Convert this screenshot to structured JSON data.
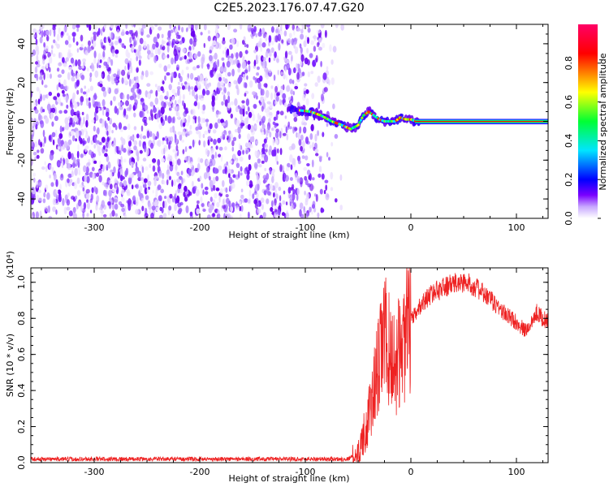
{
  "chart_data": [
    {
      "type": "heatmap",
      "title": "C2E5.2023.176.07.47.G20",
      "xlabel": "Height of straight line (km)",
      "ylabel": "Frequency (Hz)",
      "xlim": [
        -360,
        130
      ],
      "ylim": [
        -50,
        50
      ],
      "xticks": [
        -300,
        -200,
        -100,
        0,
        100
      ],
      "yticks": [
        -40,
        -20,
        0,
        20,
        40
      ],
      "noise_region_x": [
        -360,
        -70
      ],
      "signal_trace": [
        {
          "x": -110,
          "y": 6
        },
        {
          "x": -95,
          "y": 5
        },
        {
          "x": -85,
          "y": 3
        },
        {
          "x": -75,
          "y": 0
        },
        {
          "x": -65,
          "y": -2
        },
        {
          "x": -57,
          "y": -4
        },
        {
          "x": -50,
          "y": -2
        },
        {
          "x": -45,
          "y": 3
        },
        {
          "x": -40,
          "y": 5
        },
        {
          "x": -35,
          "y": 3
        },
        {
          "x": -30,
          "y": 1
        },
        {
          "x": -25,
          "y": 0
        },
        {
          "x": -20,
          "y": 0
        },
        {
          "x": -15,
          "y": 0
        },
        {
          "x": -10,
          "y": 2
        },
        {
          "x": -5,
          "y": 1
        },
        {
          "x": 0,
          "y": 1
        },
        {
          "x": 5,
          "y": 0
        },
        {
          "x": 130,
          "y": 0
        }
      ],
      "colorbar": {
        "label": "Normalized spectral amplitude",
        "range": [
          0,
          1
        ],
        "ticks": [
          "0.0",
          "0.2",
          "0.4",
          "0.6",
          "0.8"
        ],
        "colors": [
          "#ffffff",
          "#7a00ff",
          "#0000ff",
          "#00e5ff",
          "#00ff33",
          "#ffff00",
          "#ff0000",
          "#ff0066"
        ]
      }
    },
    {
      "type": "line",
      "xlabel": "Height of straight line (km)",
      "ylabel": "SNR (10 * v/v)",
      "scale_label": "(x10⁴)",
      "xlim": [
        -360,
        130
      ],
      "ylim": [
        0,
        1.08
      ],
      "xticks": [
        -300,
        -200,
        -100,
        0,
        100
      ],
      "yticks": [
        "0.0",
        "0.2",
        "0.4",
        "0.6",
        "0.8",
        "1.0"
      ],
      "color": "#ee2222",
      "envelope": [
        {
          "x": -360,
          "y": 0.02
        },
        {
          "x": -60,
          "y": 0.02
        },
        {
          "x": -50,
          "y": 0.05
        },
        {
          "x": -40,
          "y": 0.25
        },
        {
          "x": -30,
          "y": 0.55
        },
        {
          "x": -25,
          "y": 0.72
        },
        {
          "x": -20,
          "y": 0.6
        },
        {
          "x": -15,
          "y": 0.55
        },
        {
          "x": -10,
          "y": 0.62
        },
        {
          "x": -5,
          "y": 0.7
        },
        {
          "x": 0,
          "y": 0.78
        },
        {
          "x": 10,
          "y": 0.88
        },
        {
          "x": 20,
          "y": 0.94
        },
        {
          "x": 30,
          "y": 0.97
        },
        {
          "x": 40,
          "y": 0.99
        },
        {
          "x": 50,
          "y": 1.0
        },
        {
          "x": 60,
          "y": 0.98
        },
        {
          "x": 70,
          "y": 0.93
        },
        {
          "x": 80,
          "y": 0.88
        },
        {
          "x": 90,
          "y": 0.82
        },
        {
          "x": 100,
          "y": 0.78
        },
        {
          "x": 108,
          "y": 0.73
        },
        {
          "x": 113,
          "y": 0.76
        },
        {
          "x": 118,
          "y": 0.84
        },
        {
          "x": 125,
          "y": 0.8
        },
        {
          "x": 130,
          "y": 0.78
        }
      ]
    }
  ]
}
